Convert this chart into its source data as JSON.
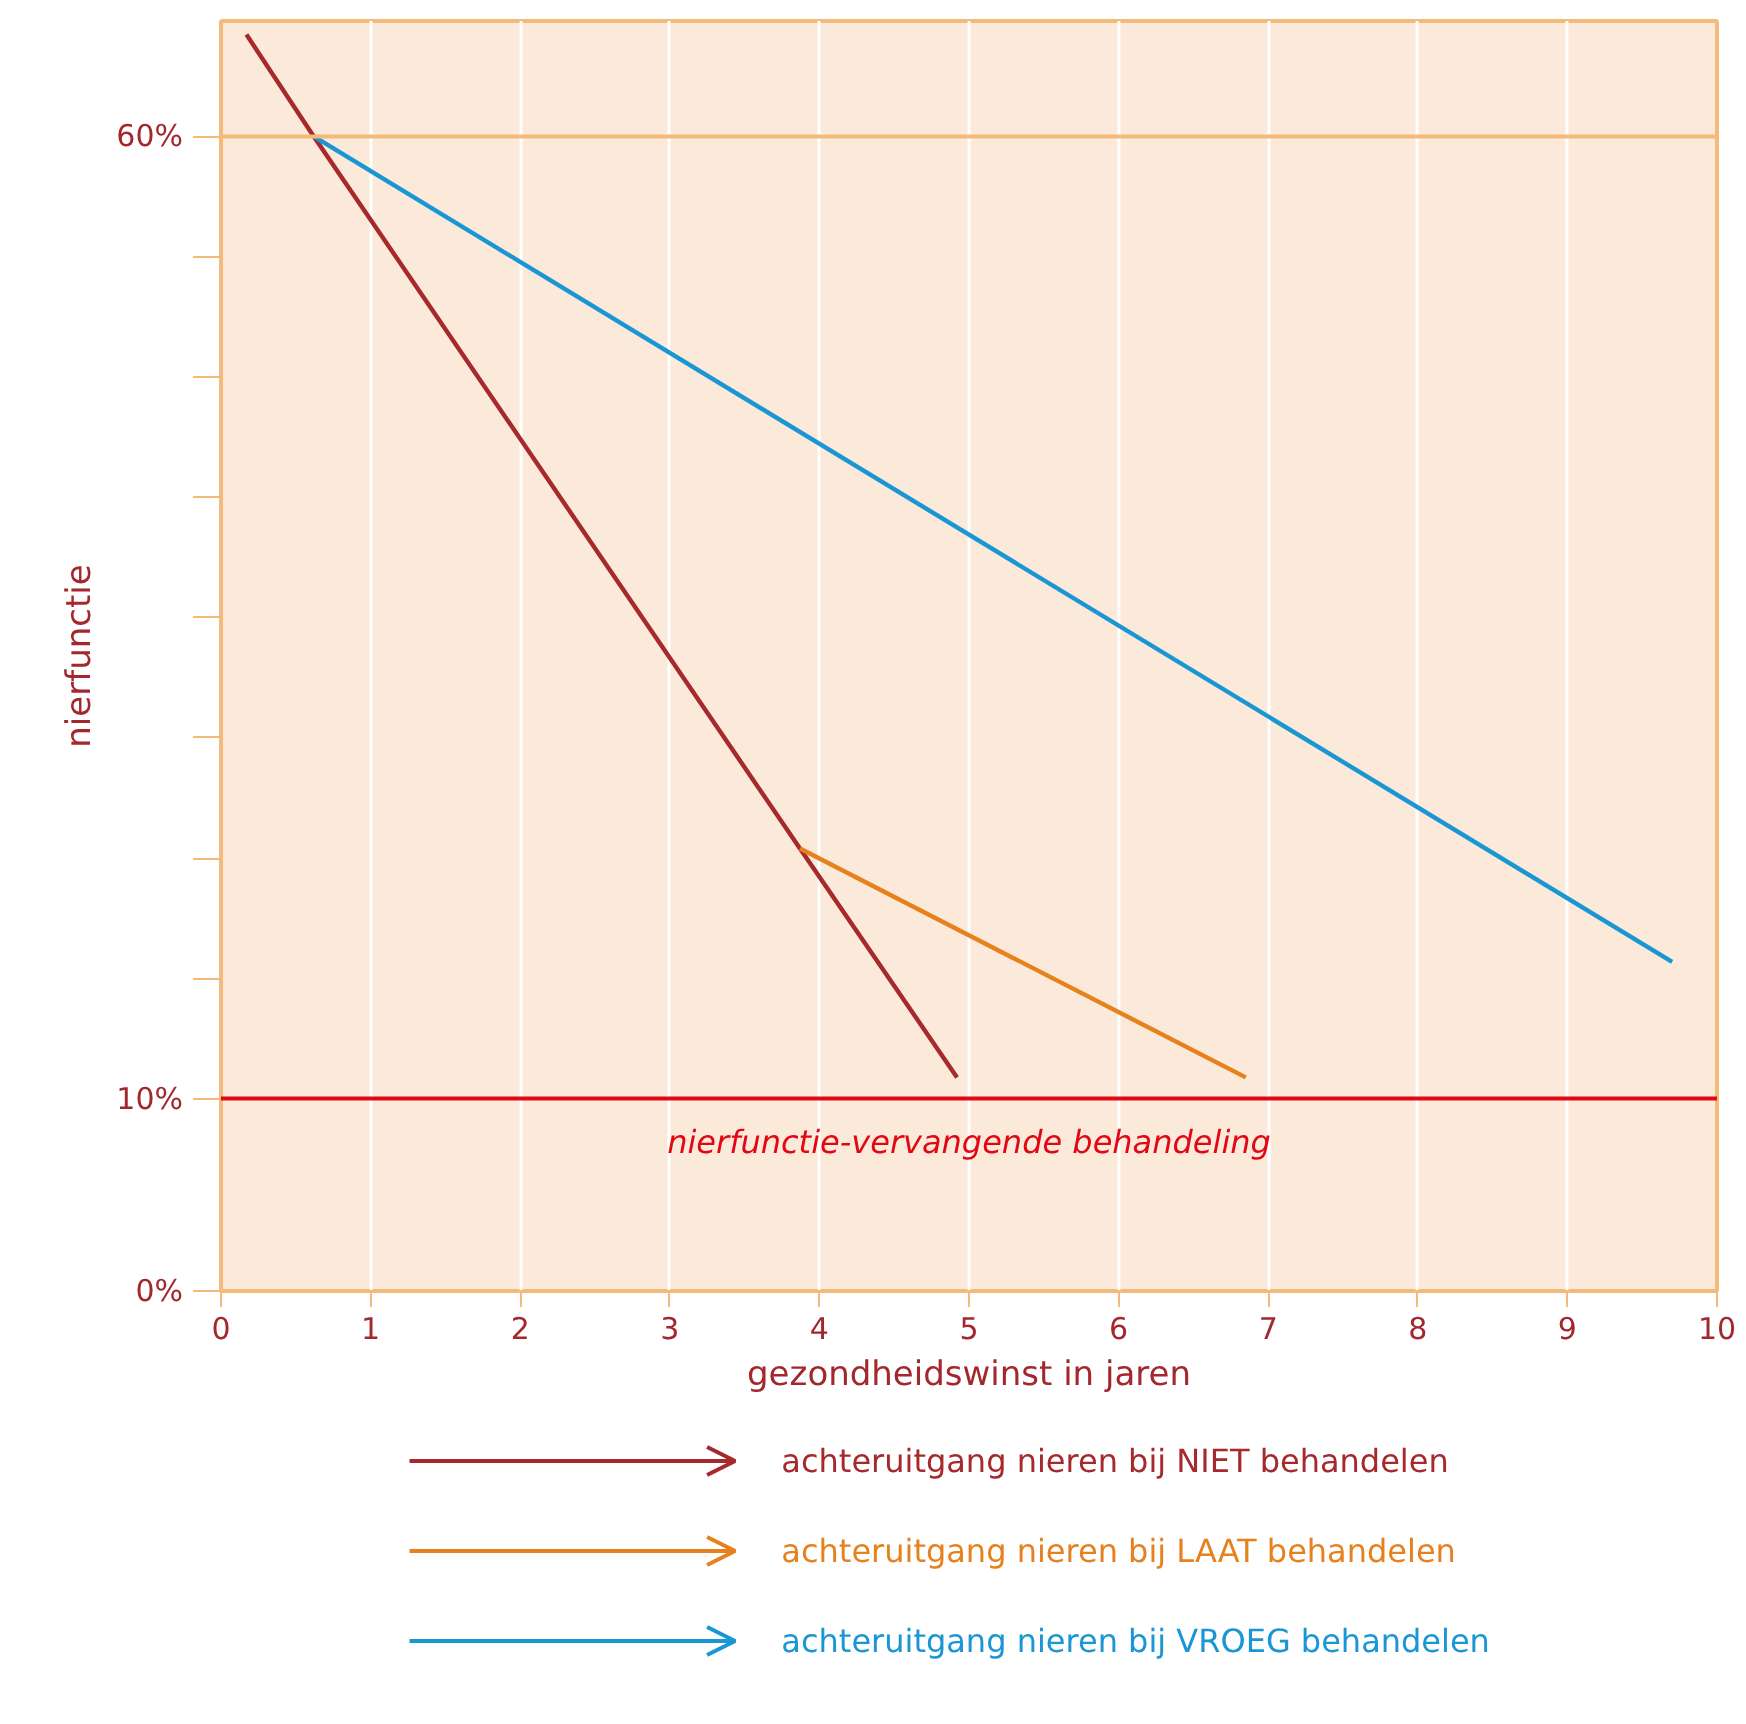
{
  "chart_data": {
    "type": "line",
    "xlabel": "gezondheidswinst in jaren",
    "ylabel": "nierfunctie",
    "xlim": [
      0,
      10
    ],
    "ylim": [
      0,
      66
    ],
    "xticks": [
      0,
      1,
      2,
      3,
      4,
      5,
      6,
      7,
      8,
      9,
      10
    ],
    "yticks": [
      {
        "value": 0,
        "label": "0%"
      },
      {
        "value": 10,
        "label": "10%"
      },
      {
        "value": 16.25,
        "label": null
      },
      {
        "value": 22.5,
        "label": null
      },
      {
        "value": 28.75,
        "label": null
      },
      {
        "value": 35,
        "label": null
      },
      {
        "value": 41.25,
        "label": null
      },
      {
        "value": 47.5,
        "label": null
      },
      {
        "value": 53.75,
        "label": null
      },
      {
        "value": 60,
        "label": "60%"
      }
    ],
    "grid": "x",
    "legend": "bottom",
    "marker": "none",
    "line_style": "solid",
    "series": [
      {
        "name": "achteruitgang nieren bij NIET behandelen",
        "color": "#a6292e",
        "x": [
          0.17,
          0.62,
          3.87,
          4.92
        ],
        "values": [
          65.3,
          60,
          23,
          11.1
        ]
      },
      {
        "name": "achteruitgang nieren bij LAAT behandelen",
        "color": "#e6811e",
        "x": [
          3.87,
          6.85
        ],
        "values": [
          23,
          11.1
        ]
      },
      {
        "name": "achteruitgang nieren bij VROEG behandelen",
        "color": "#1a96d4",
        "x": [
          0.62,
          9.7
        ],
        "values": [
          60,
          17.1
        ]
      }
    ],
    "ref_lines": [
      {
        "axis": "y",
        "value": 10,
        "label": "nierfunctie-vervangende behandeling",
        "color": "#e30613",
        "line_style": "solid"
      },
      {
        "axis": "y",
        "value": 60,
        "label": null,
        "color": "#f5b97a",
        "line_style": "solid"
      }
    ]
  }
}
